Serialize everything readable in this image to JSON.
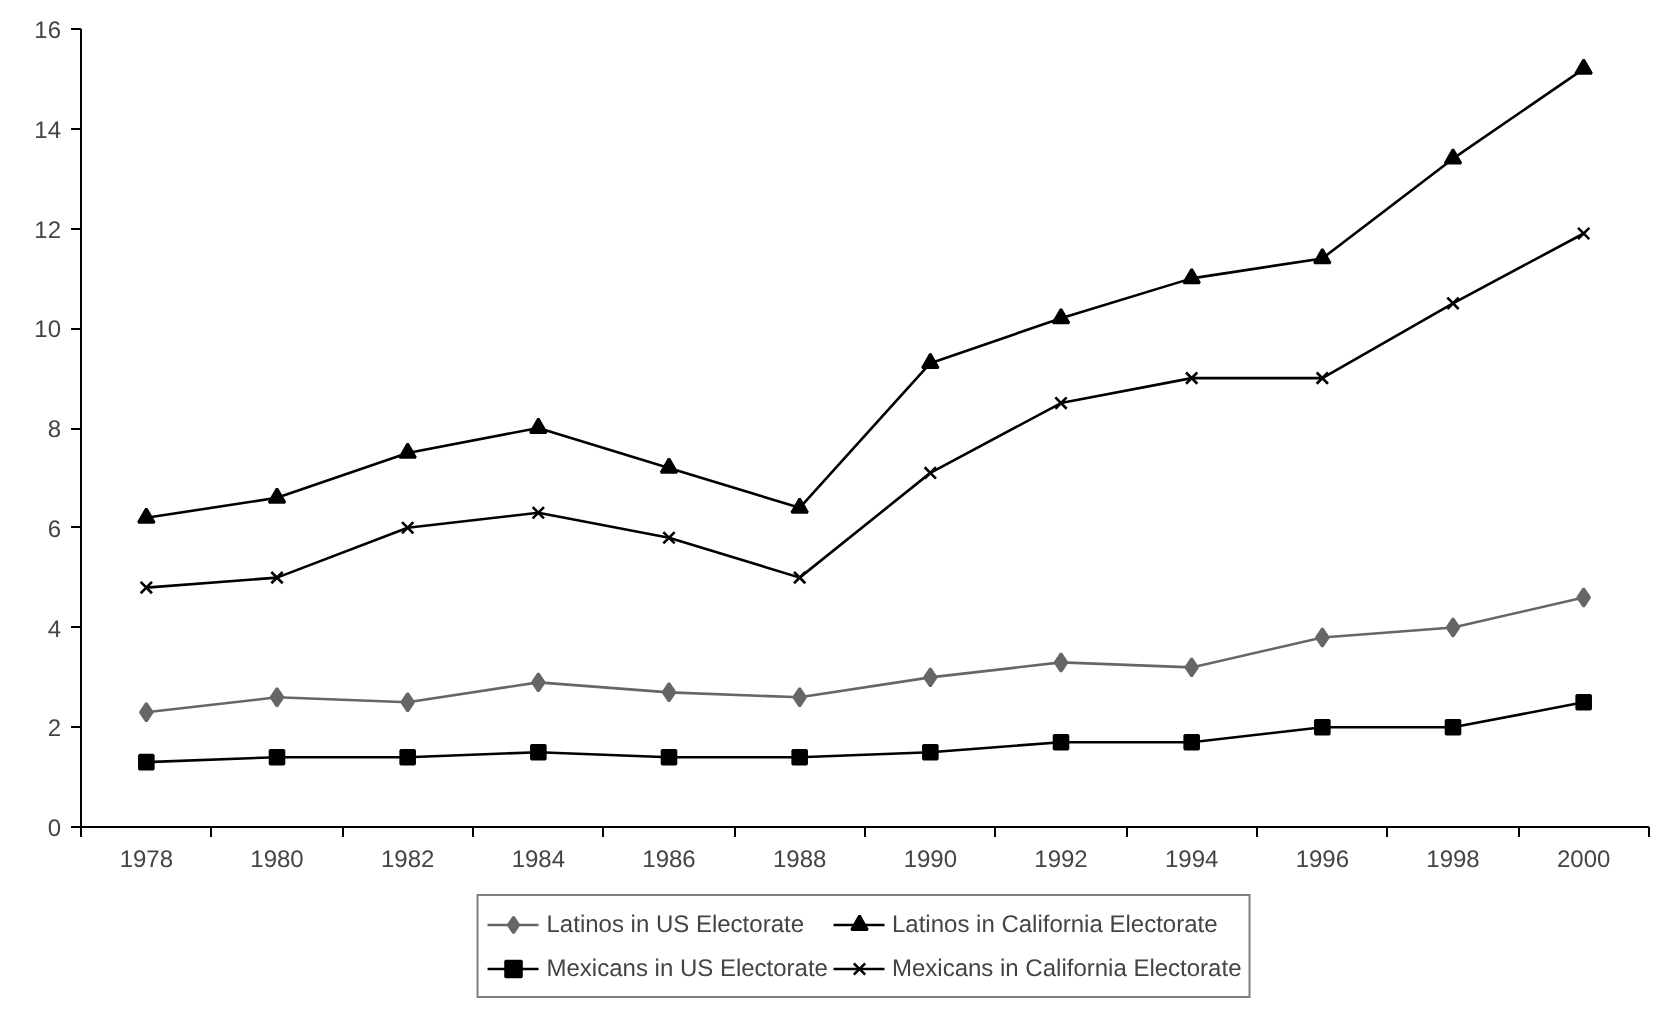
{
  "chart_data": {
    "type": "line",
    "categories": [
      "1978",
      "1980",
      "1982",
      "1984",
      "1986",
      "1988",
      "1990",
      "1992",
      "1994",
      "1996",
      "1998",
      "2000"
    ],
    "ylim": [
      0,
      16
    ],
    "yticks": [
      0,
      2,
      4,
      6,
      8,
      10,
      12,
      14,
      16
    ],
    "grid": false,
    "legend": "bottom",
    "series": [
      {
        "name": "Latinos in US Electorate",
        "color": "#666666",
        "marker": "diamond",
        "values": [
          2.3,
          2.6,
          2.5,
          2.9,
          2.7,
          2.6,
          3.0,
          3.3,
          3.2,
          3.8,
          4.0,
          4.6
        ]
      },
      {
        "name": "Mexicans in US Electorate",
        "color": "#000000",
        "marker": "square",
        "values": [
          1.3,
          1.4,
          1.4,
          1.5,
          1.4,
          1.4,
          1.5,
          1.7,
          1.7,
          2.0,
          2.0,
          2.5
        ]
      },
      {
        "name": "Latinos in California Electorate",
        "color": "#000000",
        "marker": "triangle",
        "values": [
          6.2,
          6.6,
          7.5,
          8.0,
          7.2,
          6.4,
          9.3,
          10.2,
          11.0,
          11.4,
          13.4,
          15.2
        ]
      },
      {
        "name": "Mexicans in California Electorate",
        "color": "#000000",
        "marker": "x",
        "values": [
          4.8,
          5.0,
          6.0,
          6.3,
          5.8,
          5.0,
          7.1,
          8.5,
          9.0,
          9.0,
          10.5,
          11.9
        ]
      }
    ]
  }
}
